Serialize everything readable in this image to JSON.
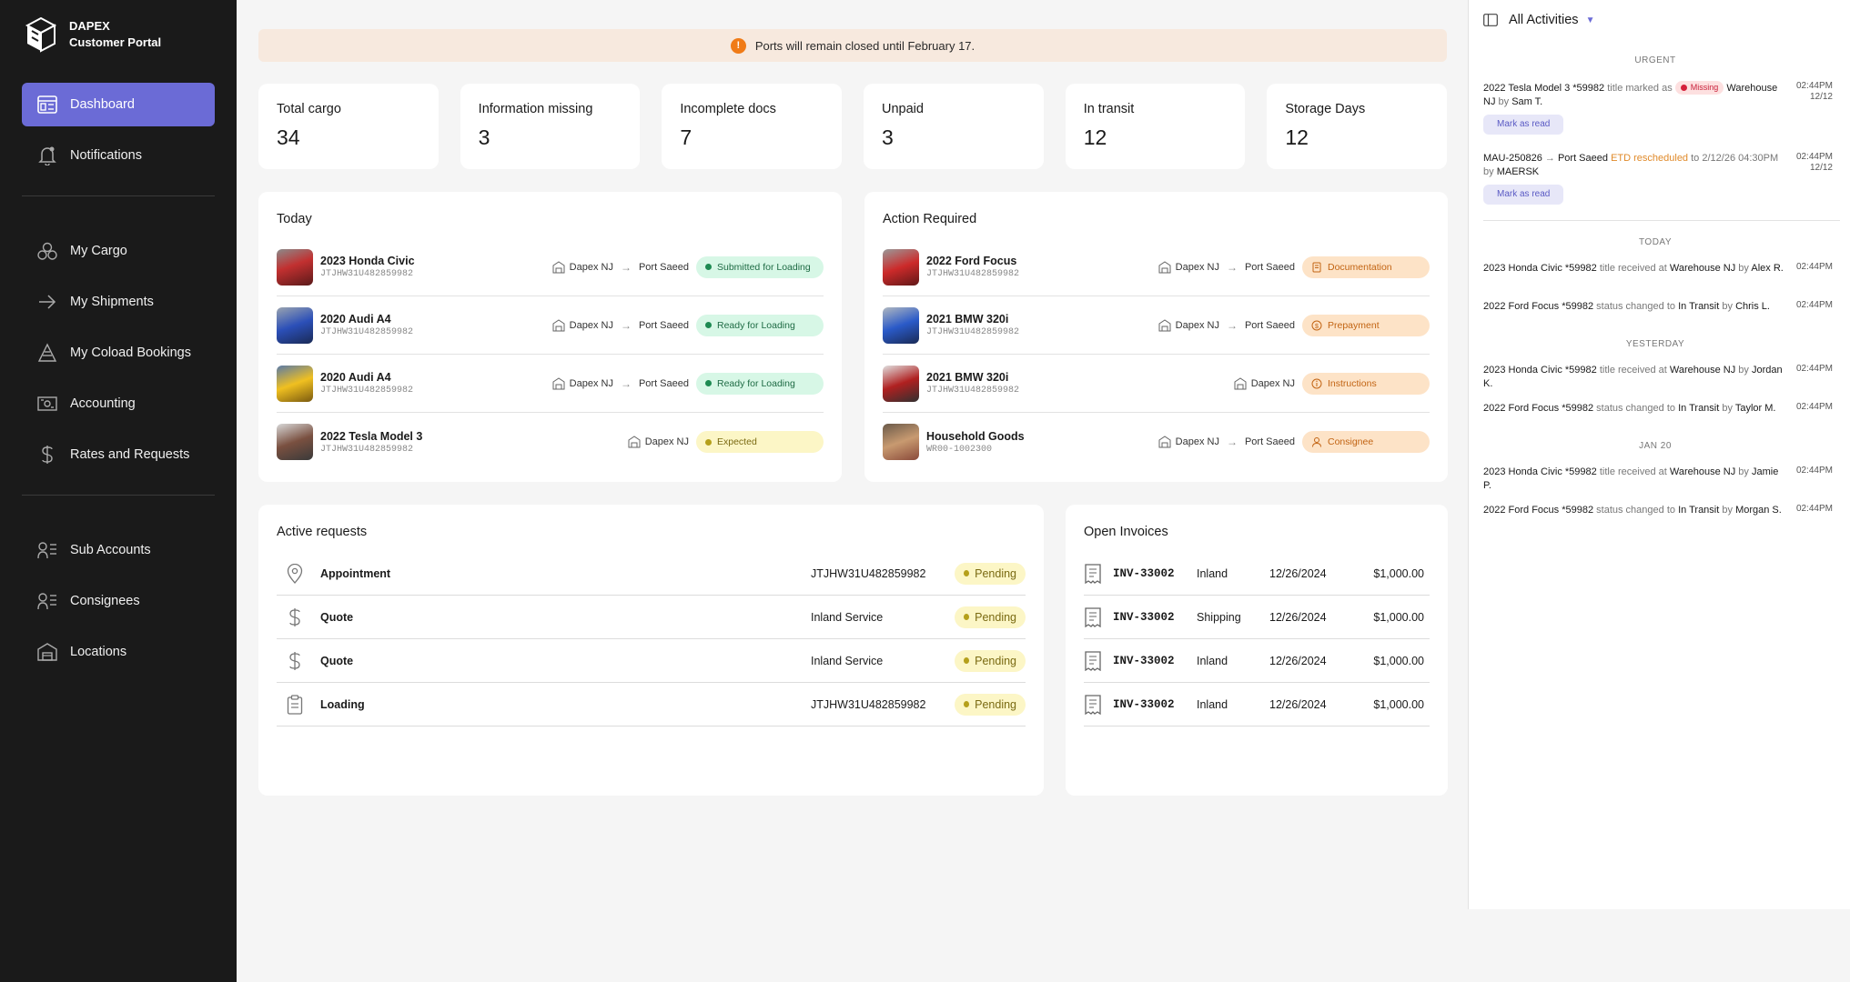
{
  "brand": {
    "line1": "DAPEX",
    "line2": "Customer Portal"
  },
  "nav": {
    "dashboard": "Dashboard",
    "notifications": "Notifications",
    "my_cargo": "My Cargo",
    "my_shipments": "My Shipments",
    "my_coload": "My Coload Bookings",
    "accounting": "Accounting",
    "rates": "Rates and Requests",
    "sub_accounts": "Sub Accounts",
    "consignees": "Consignees",
    "locations": "Locations"
  },
  "banner": {
    "icon": "!",
    "text": "Ports will remain closed until February 17."
  },
  "stats": [
    {
      "label": "Total cargo",
      "value": "34"
    },
    {
      "label": "Information missing",
      "value": "3"
    },
    {
      "label": "Incomplete docs",
      "value": "7"
    },
    {
      "label": "Unpaid",
      "value": "3"
    },
    {
      "label": "In transit",
      "value": "12"
    },
    {
      "label": "Storage Days",
      "value": "12"
    }
  ],
  "today": {
    "title": "Today",
    "rows": [
      {
        "name": "2023 Honda Civic",
        "vin": "JTJHW31U482859982",
        "from": "Dapex NJ",
        "to": "Port Saeed",
        "status": "Submitted for Loading"
      },
      {
        "name": "2020 Audi A4",
        "vin": "JTJHW31U482859982",
        "from": "Dapex NJ",
        "to": "Port Saeed",
        "status": "Ready for Loading"
      },
      {
        "name": "2020 Audi A4",
        "vin": "JTJHW31U482859982",
        "from": "Dapex NJ",
        "to": "Port Saeed",
        "status": "Ready for Loading"
      },
      {
        "name": "2022 Tesla Model 3",
        "vin": "JTJHW31U482859982",
        "from": "Dapex NJ",
        "status": "Expected"
      }
    ]
  },
  "action": {
    "title": "Action Required",
    "rows": [
      {
        "name": "2022 Ford Focus",
        "vin": "JTJHW31U482859982",
        "from": "Dapex NJ",
        "to": "Port Saeed",
        "status": "Documentation"
      },
      {
        "name": "2021 BMW 320i",
        "vin": "JTJHW31U482859982",
        "from": "Dapex NJ",
        "to": "Port Saeed",
        "status": "Prepayment"
      },
      {
        "name": "2021 BMW 320i",
        "vin": "JTJHW31U482859982",
        "from": "Dapex NJ",
        "status": "Instructions"
      },
      {
        "name": "Household Goods",
        "vin": "WR00-1002300",
        "from": "Dapex NJ",
        "to": "Port Saeed",
        "status": "Consignee"
      }
    ]
  },
  "requests": {
    "title": "Active requests",
    "rows": [
      {
        "label": "Appointment",
        "ref": "JTJHW31U482859982",
        "status": "Pending"
      },
      {
        "label": "Quote",
        "ref": "Inland Service",
        "status": "Pending"
      },
      {
        "label": "Quote",
        "ref": "Inland Service",
        "status": "Pending"
      },
      {
        "label": "Loading",
        "ref": "JTJHW31U482859982",
        "status": "Pending"
      }
    ]
  },
  "invoices": {
    "title": "Open Invoices",
    "rows": [
      {
        "num": "INV-33002",
        "type": "Inland",
        "date": "12/26/2024",
        "amount": "$1,000.00"
      },
      {
        "num": "INV-33002",
        "type": "Shipping",
        "date": "12/26/2024",
        "amount": "$1,000.00"
      },
      {
        "num": "INV-33002",
        "type": "Inland",
        "date": "12/26/2024",
        "amount": "$1,000.00"
      },
      {
        "num": "INV-33002",
        "type": "Inland",
        "date": "12/26/2024",
        "amount": "$1,000.00"
      }
    ]
  },
  "activity": {
    "filter": "All Activities",
    "sections": {
      "urgent": "URGENT",
      "today": "TODAY",
      "yesterday": "YESTERDAY",
      "jan20": "JAN 20"
    },
    "mark_read": "Mark as read",
    "urgent": [
      {
        "subject": "2022 Tesla Model 3 *59982",
        "verb": "title marked as",
        "badge": "Missing",
        "place": "Warehouse NJ",
        "by": "by",
        "user": "Sam T.",
        "time": "02:44PM",
        "date": "12/12"
      },
      {
        "subject": "MAU-250826",
        "dest": "Port Saeed",
        "event": "ETD rescheduled",
        "to": "to",
        "when": "2/12/26 04:30PM",
        "by": "by",
        "user": "MAERSK",
        "time": "02:44PM",
        "date": "12/12"
      }
    ],
    "today": [
      {
        "subject": "2023 Honda Civic *59982",
        "verb": "title received at",
        "place": "Warehouse NJ",
        "by": "by",
        "user": "Alex R.",
        "time": "02:44PM"
      },
      {
        "subject": "2022 Ford Focus *59982",
        "verb": "status changed to",
        "place": "In Transit",
        "by": "by",
        "user": "Chris L.",
        "time": "02:44PM"
      }
    ],
    "yesterday": [
      {
        "subject": "2023 Honda Civic *59982",
        "verb": "title received at",
        "place": "Warehouse NJ",
        "by": "by",
        "user": "Jordan K.",
        "time": "02:44PM"
      },
      {
        "subject": "2022 Ford Focus *59982",
        "verb": "status changed to",
        "place": "In Transit",
        "by": "by",
        "user": "Taylor M.",
        "time": "02:44PM"
      }
    ],
    "jan20": [
      {
        "subject": "2023 Honda Civic *59982",
        "verb": "title received at",
        "place": "Warehouse NJ",
        "by": "by",
        "user": "Jamie P.",
        "time": "02:44PM"
      },
      {
        "subject": "2022 Ford Focus *59982",
        "verb": "status changed to",
        "place": "In Transit",
        "by": "by",
        "user": "Morgan S.",
        "time": "02:44PM"
      }
    ]
  }
}
